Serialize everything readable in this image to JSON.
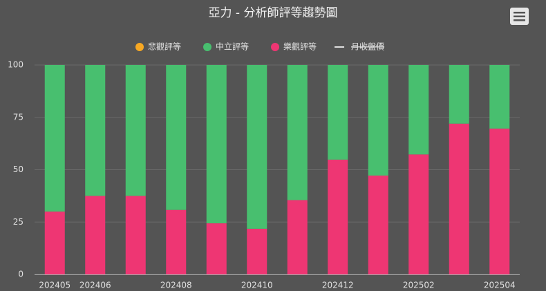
{
  "chart_data": {
    "type": "stacked_bar",
    "title": "亞力 - 分析師評等趨勢圖",
    "categories": [
      "202405",
      "202406",
      null,
      "202408",
      null,
      "202410",
      null,
      "202412",
      null,
      "202502",
      null,
      "202504"
    ],
    "series": [
      {
        "name": "悲觀評等",
        "color": "#f7a823",
        "values": [
          0,
          0,
          0,
          0,
          0,
          0,
          0,
          0,
          0,
          0,
          0,
          0
        ]
      },
      {
        "name": "中立評等",
        "color": "#48bf6f",
        "values": [
          70,
          62.5,
          62.5,
          69.2,
          75.6,
          78.2,
          64.5,
          45.2,
          52.8,
          42.7,
          28,
          30.4
        ]
      },
      {
        "name": "樂觀評等",
        "color": "#ee3673",
        "values": [
          30,
          37.5,
          37.5,
          30.8,
          24.4,
          21.8,
          35.5,
          54.8,
          47.2,
          57.3,
          72,
          69.6
        ]
      },
      {
        "name": "月收盤價",
        "color": "#e0e0e0",
        "type": "line",
        "hidden": true,
        "values": [
          null,
          null,
          null,
          null,
          null,
          null,
          null,
          null,
          null,
          null,
          null,
          null
        ]
      }
    ],
    "ylim": [
      0,
      100
    ],
    "yticks": [
      0,
      25,
      50,
      75,
      100
    ],
    "grid": true,
    "legend": "top"
  }
}
